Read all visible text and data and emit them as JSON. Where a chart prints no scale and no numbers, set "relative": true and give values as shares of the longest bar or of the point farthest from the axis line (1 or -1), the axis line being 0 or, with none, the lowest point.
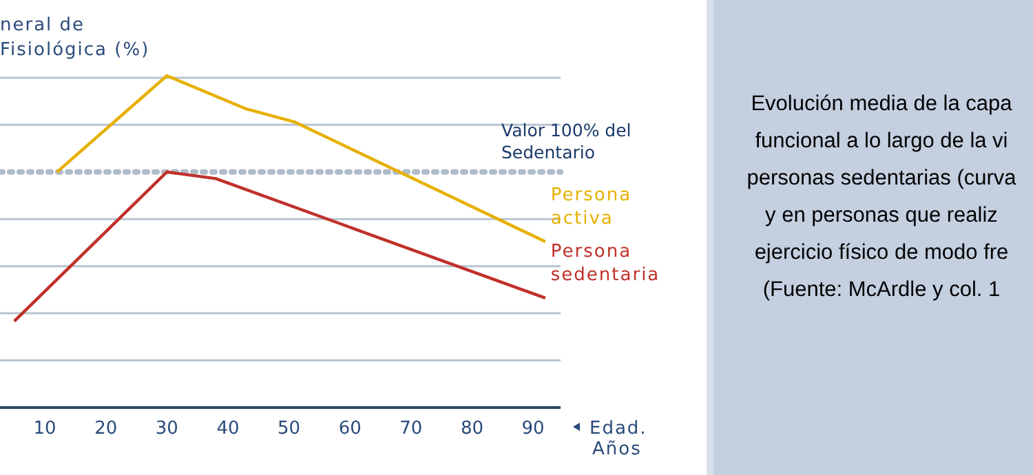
{
  "chart_data": {
    "type": "line",
    "relative": true,
    "ylabel": "neral de\nFisiológica (%)",
    "xlabel": "Edad.\nAños",
    "xlim": [
      3,
      94.5
    ],
    "xticks": [
      10,
      20,
      30,
      40,
      50,
      60,
      70,
      80,
      90
    ],
    "grid": "y",
    "series": [
      {
        "name": "Persona activa",
        "color": "#e6b000",
        "x": [
          12,
          30,
          43,
          51,
          92
        ],
        "values": [
          0.71,
          1,
          0.9,
          0.86,
          0.5
        ]
      },
      {
        "name": "Persona sedentaria",
        "color": "#c0302a",
        "x": [
          5,
          30,
          38,
          92
        ],
        "values": [
          0.26,
          0.71,
          0.69,
          0.33
        ]
      }
    ],
    "ref_lines": [
      {
        "axis": "y",
        "value": 0.71,
        "label": "Valor 100% del\nSedentario",
        "color": "#b0bcc8",
        "line_style": "dotted"
      }
    ],
    "annotations": [
      "Evolución media de la capa",
      "funcional a lo largo de la vi",
      "personas sedentarias (curva",
      "y en personas que realiz",
      "ejercicio físico de modo fre",
      "(Fuente: McArdle y col. 1"
    ]
  }
}
